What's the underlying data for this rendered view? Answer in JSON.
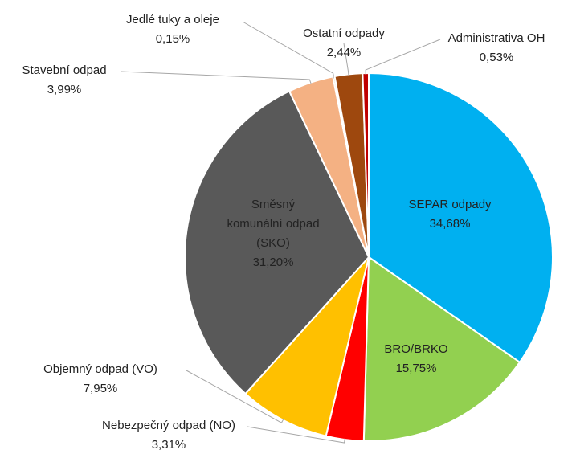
{
  "chart_data": {
    "type": "pie",
    "categories": [
      "SEPAR odpady",
      "BRO/BRKO",
      "Nebezpečný odpad (NO)",
      "Objemný odpad (VO)",
      "Směsný komunální odpad (SKO)",
      "Stavební odpad",
      "Jedlé tuky a oleje",
      "Ostatní odpady",
      "Administrativa OH"
    ],
    "values": [
      34.68,
      15.75,
      3.31,
      7.95,
      31.2,
      3.99,
      0.15,
      2.44,
      0.53
    ],
    "value_labels": [
      "34,68%",
      "15,75%",
      "3,31%",
      "7,95%",
      "31,20%",
      "3,99%",
      "0,15%",
      "2,44%",
      "0,53%"
    ],
    "colors": [
      "#00b0f0",
      "#92d050",
      "#ff0000",
      "#ffc000",
      "#595959",
      "#f4b183",
      "#7f6000",
      "#9e480e",
      "#c00000"
    ]
  }
}
